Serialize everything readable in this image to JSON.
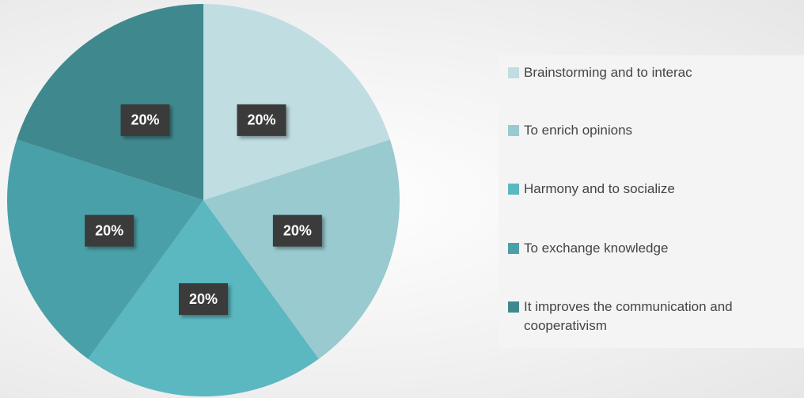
{
  "chart_data": {
    "type": "pie",
    "categories": [
      "Brainstorming and to interac",
      "To enrich opinions",
      "Harmony and to socialize",
      "To exchange knowledge",
      "It improves the communication and cooperativism"
    ],
    "values": [
      20,
      20,
      20,
      20,
      20
    ],
    "value_labels": [
      "20%",
      "20%",
      "20%",
      "20%",
      "20%"
    ],
    "colors": [
      "#c0dde2",
      "#98cacf",
      "#5bb7c0",
      "#4aa0a8",
      "#3f898e"
    ],
    "legend": "right"
  }
}
